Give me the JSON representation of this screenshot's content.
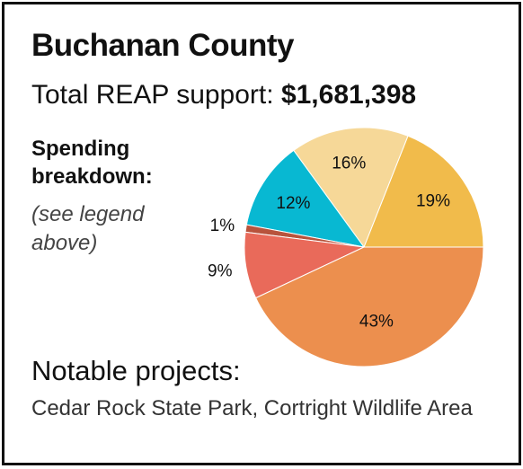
{
  "card": {
    "title": "Buchanan County",
    "total_label": "Total REAP support: ",
    "total_value": "$1,681,398",
    "spending_heading": "Spending breakdown:",
    "spending_note": "(see legend above)",
    "projects_heading": "Notable projects:",
    "projects_text": "Cedar Rock State Park, Cortright Wildlife Area"
  },
  "chart_data": {
    "type": "pie",
    "title": "",
    "start_angle_deg": 0,
    "direction": "counterclockwise",
    "slices": [
      {
        "value": 19,
        "label": "19%",
        "color": "#f1bb4b"
      },
      {
        "value": 16,
        "label": "16%",
        "color": "#f6d898"
      },
      {
        "value": 12,
        "label": "12%",
        "color": "#08b8d2"
      },
      {
        "value": 1,
        "label": "1%",
        "color": "#b8533c"
      },
      {
        "value": 9,
        "label": "9%",
        "color": "#e96a5a"
      },
      {
        "value": 43,
        "label": "43%",
        "color": "#ec8f4e"
      }
    ]
  }
}
